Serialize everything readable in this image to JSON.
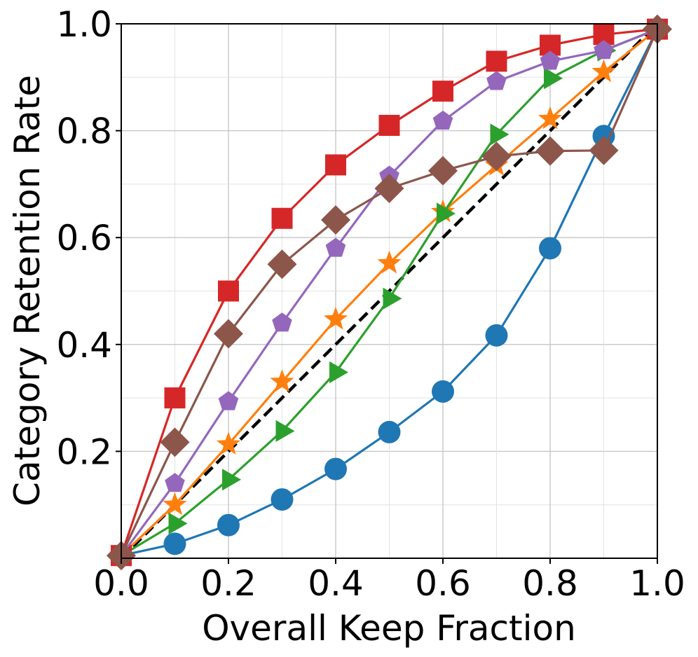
{
  "chart_data": {
    "type": "line",
    "title": "",
    "xlabel": "Overall Keep Fraction",
    "ylabel": "Category Retention Rate",
    "xlim": [
      0,
      1
    ],
    "ylim": [
      0,
      1
    ],
    "grid": true,
    "x_ticks": [
      "0.0",
      "0.2",
      "0.4",
      "0.6",
      "0.8",
      "1.0"
    ],
    "y_ticks": [
      "0.2",
      "0.4",
      "0.6",
      "0.8",
      "1.0"
    ],
    "reference_line": {
      "name": "y = x",
      "color": "#000000",
      "style": "dashed",
      "x": [
        0,
        1
      ],
      "y": [
        0,
        1
      ]
    },
    "series": [
      {
        "name": "blue circles",
        "color": "#1f77b4",
        "marker": "circle",
        "x": [
          0.0,
          0.1,
          0.2,
          0.3,
          0.4,
          0.5,
          0.6,
          0.7,
          0.8,
          0.9,
          1.0
        ],
        "y": [
          0.005,
          0.027,
          0.062,
          0.11,
          0.167,
          0.236,
          0.312,
          0.417,
          0.58,
          0.79,
          0.99
        ]
      },
      {
        "name": "orange stars",
        "color": "#ff7f0e",
        "marker": "star",
        "x": [
          0.0,
          0.1,
          0.2,
          0.3,
          0.4,
          0.5,
          0.6,
          0.7,
          0.8,
          0.9,
          1.0
        ],
        "y": [
          0.005,
          0.1,
          0.213,
          0.33,
          0.447,
          0.552,
          0.648,
          0.735,
          0.822,
          0.91,
          0.99
        ]
      },
      {
        "name": "green triangles",
        "color": "#2ca02c",
        "marker": "triangle-right",
        "x": [
          0.0,
          0.1,
          0.2,
          0.3,
          0.4,
          0.5,
          0.6,
          0.7,
          0.8,
          0.9,
          1.0
        ],
        "y": [
          0.005,
          0.065,
          0.147,
          0.238,
          0.348,
          0.486,
          0.645,
          0.793,
          0.898,
          0.95,
          0.99
        ]
      },
      {
        "name": "red squares",
        "color": "#d62728",
        "marker": "square",
        "x": [
          0.0,
          0.1,
          0.2,
          0.3,
          0.4,
          0.5,
          0.6,
          0.7,
          0.8,
          0.9,
          1.0
        ],
        "y": [
          0.005,
          0.3,
          0.5,
          0.636,
          0.736,
          0.81,
          0.874,
          0.93,
          0.96,
          0.98,
          0.99
        ]
      },
      {
        "name": "purple pentagons",
        "color": "#9467bd",
        "marker": "pentagon",
        "x": [
          0.0,
          0.1,
          0.2,
          0.3,
          0.4,
          0.5,
          0.6,
          0.7,
          0.8,
          0.9,
          1.0
        ],
        "y": [
          0.005,
          0.14,
          0.293,
          0.44,
          0.58,
          0.715,
          0.818,
          0.892,
          0.93,
          0.95,
          0.99
        ]
      },
      {
        "name": "brown diamonds",
        "color": "#8c564b",
        "marker": "diamond",
        "x": [
          0.0,
          0.1,
          0.2,
          0.3,
          0.4,
          0.5,
          0.6,
          0.7,
          0.8,
          0.9,
          1.0
        ],
        "y": [
          0.005,
          0.217,
          0.42,
          0.55,
          0.633,
          0.692,
          0.725,
          0.752,
          0.762,
          0.763,
          0.99
        ]
      }
    ]
  }
}
